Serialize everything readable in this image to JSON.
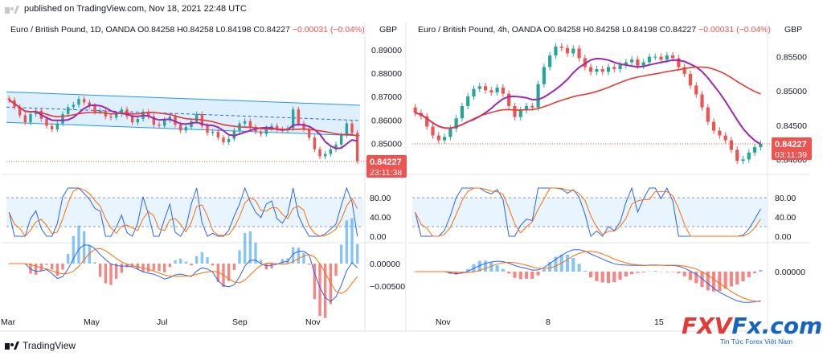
{
  "header": {
    "published": "published on TradingView.com, Nov 18, 2021 22:48 UTC"
  },
  "footer": {
    "brand": "TradingView"
  },
  "watermark": {
    "brand_left": "FXV",
    "brand_right": "Fx.com.vn",
    "tagline": "Tin Tức Forex Việt Nam"
  },
  "colors": {
    "up": "#26a69a",
    "down": "#ef5350",
    "ma_fast": "#9c27b0",
    "ma_slow": "#e53935",
    "k_line": "#2962ff",
    "d_line": "#ff6d00",
    "channel": "#2196f3"
  },
  "chart_data": [
    {
      "type": "candlestick",
      "title": "Euro / British Pound, 1D, OANDA",
      "ohlc": {
        "O": "O0.84258",
        "H": "H0.84258",
        "L": "L0.84198",
        "C": "C0.84227",
        "chg": "−0.00031 (−0.04%)"
      },
      "currency": "GBP",
      "yticks": [
        "0.89000",
        "0.88000",
        "0.87000",
        "0.86000",
        "0.85000"
      ],
      "ylim": [
        0.8385,
        0.8975
      ],
      "last_price": "0.84227",
      "countdown": "23:11:38",
      "xticks": [
        "Mar",
        "May",
        "Jul",
        "Sep",
        "Nov"
      ],
      "osc_yticks": [
        "80.00",
        "40.00",
        "0.00"
      ],
      "macd_yticks": [
        "0.00000",
        "−0.00500"
      ],
      "closes": [
        0.8685,
        0.8655,
        0.862,
        0.859,
        0.8625,
        0.864,
        0.8605,
        0.8575,
        0.856,
        0.8585,
        0.8625,
        0.8655,
        0.8665,
        0.869,
        0.8675,
        0.866,
        0.8635,
        0.864,
        0.8615,
        0.861,
        0.8625,
        0.8645,
        0.8615,
        0.859,
        0.8605,
        0.8635,
        0.8615,
        0.858,
        0.8575,
        0.86,
        0.8615,
        0.858,
        0.8555,
        0.857,
        0.8595,
        0.8625,
        0.8575,
        0.8545,
        0.855,
        0.8525,
        0.8505,
        0.852,
        0.8555,
        0.8585,
        0.8595,
        0.857,
        0.855,
        0.854,
        0.8565,
        0.8575,
        0.856,
        0.8555,
        0.8565,
        0.8645,
        0.8585,
        0.856,
        0.8525,
        0.8475,
        0.8445,
        0.8455,
        0.8475,
        0.8495,
        0.8535,
        0.8585,
        0.8545,
        0.8425
      ]
    },
    {
      "type": "candlestick",
      "title": "Euro / British Pound, 4h, OANDA",
      "ohlc": {
        "O": "O0.84258",
        "H": "H0.84258",
        "L": "L0.84198",
        "C": "C0.84227",
        "chg": "−0.00031 (−0.04%)"
      },
      "currency": "GBP",
      "yticks": [
        "0.85500",
        "0.85000",
        "0.84500",
        "0.84000"
      ],
      "ylim": [
        0.8384,
        0.8586
      ],
      "last_price": "0.84227",
      "countdown": "03:11:39",
      "xticks": [
        "Nov",
        "8",
        "15"
      ],
      "osc_yticks": [
        "80.00",
        "40.00",
        "0.00"
      ],
      "macd_yticks": [
        "0.00000"
      ],
      "closes": [
        0.8468,
        0.8463,
        0.8448,
        0.8435,
        0.8428,
        0.8433,
        0.8445,
        0.846,
        0.8478,
        0.8492,
        0.8503,
        0.8507,
        0.8501,
        0.8498,
        0.8505,
        0.8496,
        0.8478,
        0.8462,
        0.8472,
        0.8478,
        0.8476,
        0.851,
        0.8535,
        0.8552,
        0.8565,
        0.8563,
        0.8555,
        0.8562,
        0.8548,
        0.8535,
        0.8528,
        0.8532,
        0.8528,
        0.8535,
        0.8532,
        0.8538,
        0.8542,
        0.8546,
        0.8537,
        0.8542,
        0.855,
        0.855,
        0.8546,
        0.8552,
        0.8548,
        0.8535,
        0.8525,
        0.8508,
        0.8495,
        0.8476,
        0.8455,
        0.8442,
        0.8435,
        0.8428,
        0.8414,
        0.8398,
        0.84,
        0.841,
        0.8418,
        0.8423
      ]
    }
  ]
}
